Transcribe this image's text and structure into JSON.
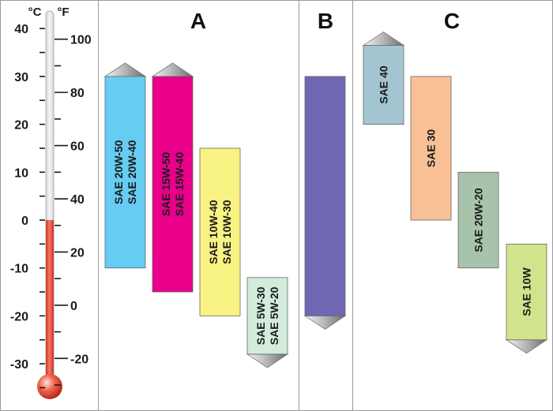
{
  "thermometer": {
    "celsius_unit": "°C",
    "fahrenheit_unit": "°F",
    "celsius_labels": [
      {
        "value": 40,
        "label": "40"
      },
      {
        "value": 30,
        "label": "30"
      },
      {
        "value": 20,
        "label": "20"
      },
      {
        "value": 10,
        "label": "10"
      },
      {
        "value": 0,
        "label": "0"
      },
      {
        "value": -10,
        "label": "-10"
      },
      {
        "value": -20,
        "label": "-20"
      },
      {
        "value": -30,
        "label": "-30"
      }
    ],
    "fahrenheit_labels": [
      {
        "value": 100,
        "label": "100"
      },
      {
        "value": 80,
        "label": "80"
      },
      {
        "value": 60,
        "label": "60"
      },
      {
        "value": 40,
        "label": "40"
      },
      {
        "value": 20,
        "label": "20"
      },
      {
        "value": 0,
        "label": "0"
      },
      {
        "value": -20,
        "label": "-20"
      }
    ],
    "mercury_top_celsius": 0,
    "mercury_color": "#e8432e",
    "tube_color": "#e8e8e8"
  },
  "columns": {
    "a": {
      "title": "A"
    },
    "b": {
      "title": "B"
    },
    "c": {
      "title": "C"
    }
  },
  "oil_ranges": [
    {
      "group": "a",
      "lines": [
        "SAE 20W-50",
        "SAE 20W-40"
      ],
      "low_c": -10,
      "high_c": 30,
      "arrow_up": true,
      "arrow_down": false,
      "color": "#66ccf2"
    },
    {
      "group": "a",
      "lines": [
        "SAE 15W-50",
        "SAE 15W-40"
      ],
      "low_c": -15,
      "high_c": 30,
      "arrow_up": true,
      "arrow_down": false,
      "color": "#e8008a"
    },
    {
      "group": "a",
      "lines": [
        "SAE 10W-40",
        "SAE 10W-30"
      ],
      "low_c": -20,
      "high_c": 15,
      "arrow_up": false,
      "arrow_down": false,
      "color": "#f9f384"
    },
    {
      "group": "a",
      "lines": [
        "SAE 5W-30",
        "SAE 5W-20"
      ],
      "low_c": -28,
      "high_c": -12,
      "arrow_up": false,
      "arrow_down": true,
      "color": "#d3ecdc"
    },
    {
      "group": "b",
      "lines": [],
      "low_c": -20,
      "high_c": 30,
      "arrow_up": false,
      "arrow_down": true,
      "color": "#7068b3"
    },
    {
      "group": "c",
      "lines": [
        "SAE 40"
      ],
      "low_c": 20,
      "high_c": 36.5,
      "arrow_up": true,
      "arrow_down": false,
      "color": "#a3c4d1"
    },
    {
      "group": "c",
      "lines": [
        "SAE 30"
      ],
      "low_c": 0,
      "high_c": 30,
      "arrow_up": false,
      "arrow_down": false,
      "color": "#f9c096"
    },
    {
      "group": "c",
      "lines": [
        "SAE 20W-20"
      ],
      "low_c": -10,
      "high_c": 10,
      "arrow_up": false,
      "arrow_down": false,
      "color": "#a7c3ac"
    },
    {
      "group": "c",
      "lines": [
        "SAE 10W"
      ],
      "low_c": -25,
      "high_c": -5,
      "arrow_up": false,
      "arrow_down": true,
      "color": "#d0e48b"
    }
  ]
}
